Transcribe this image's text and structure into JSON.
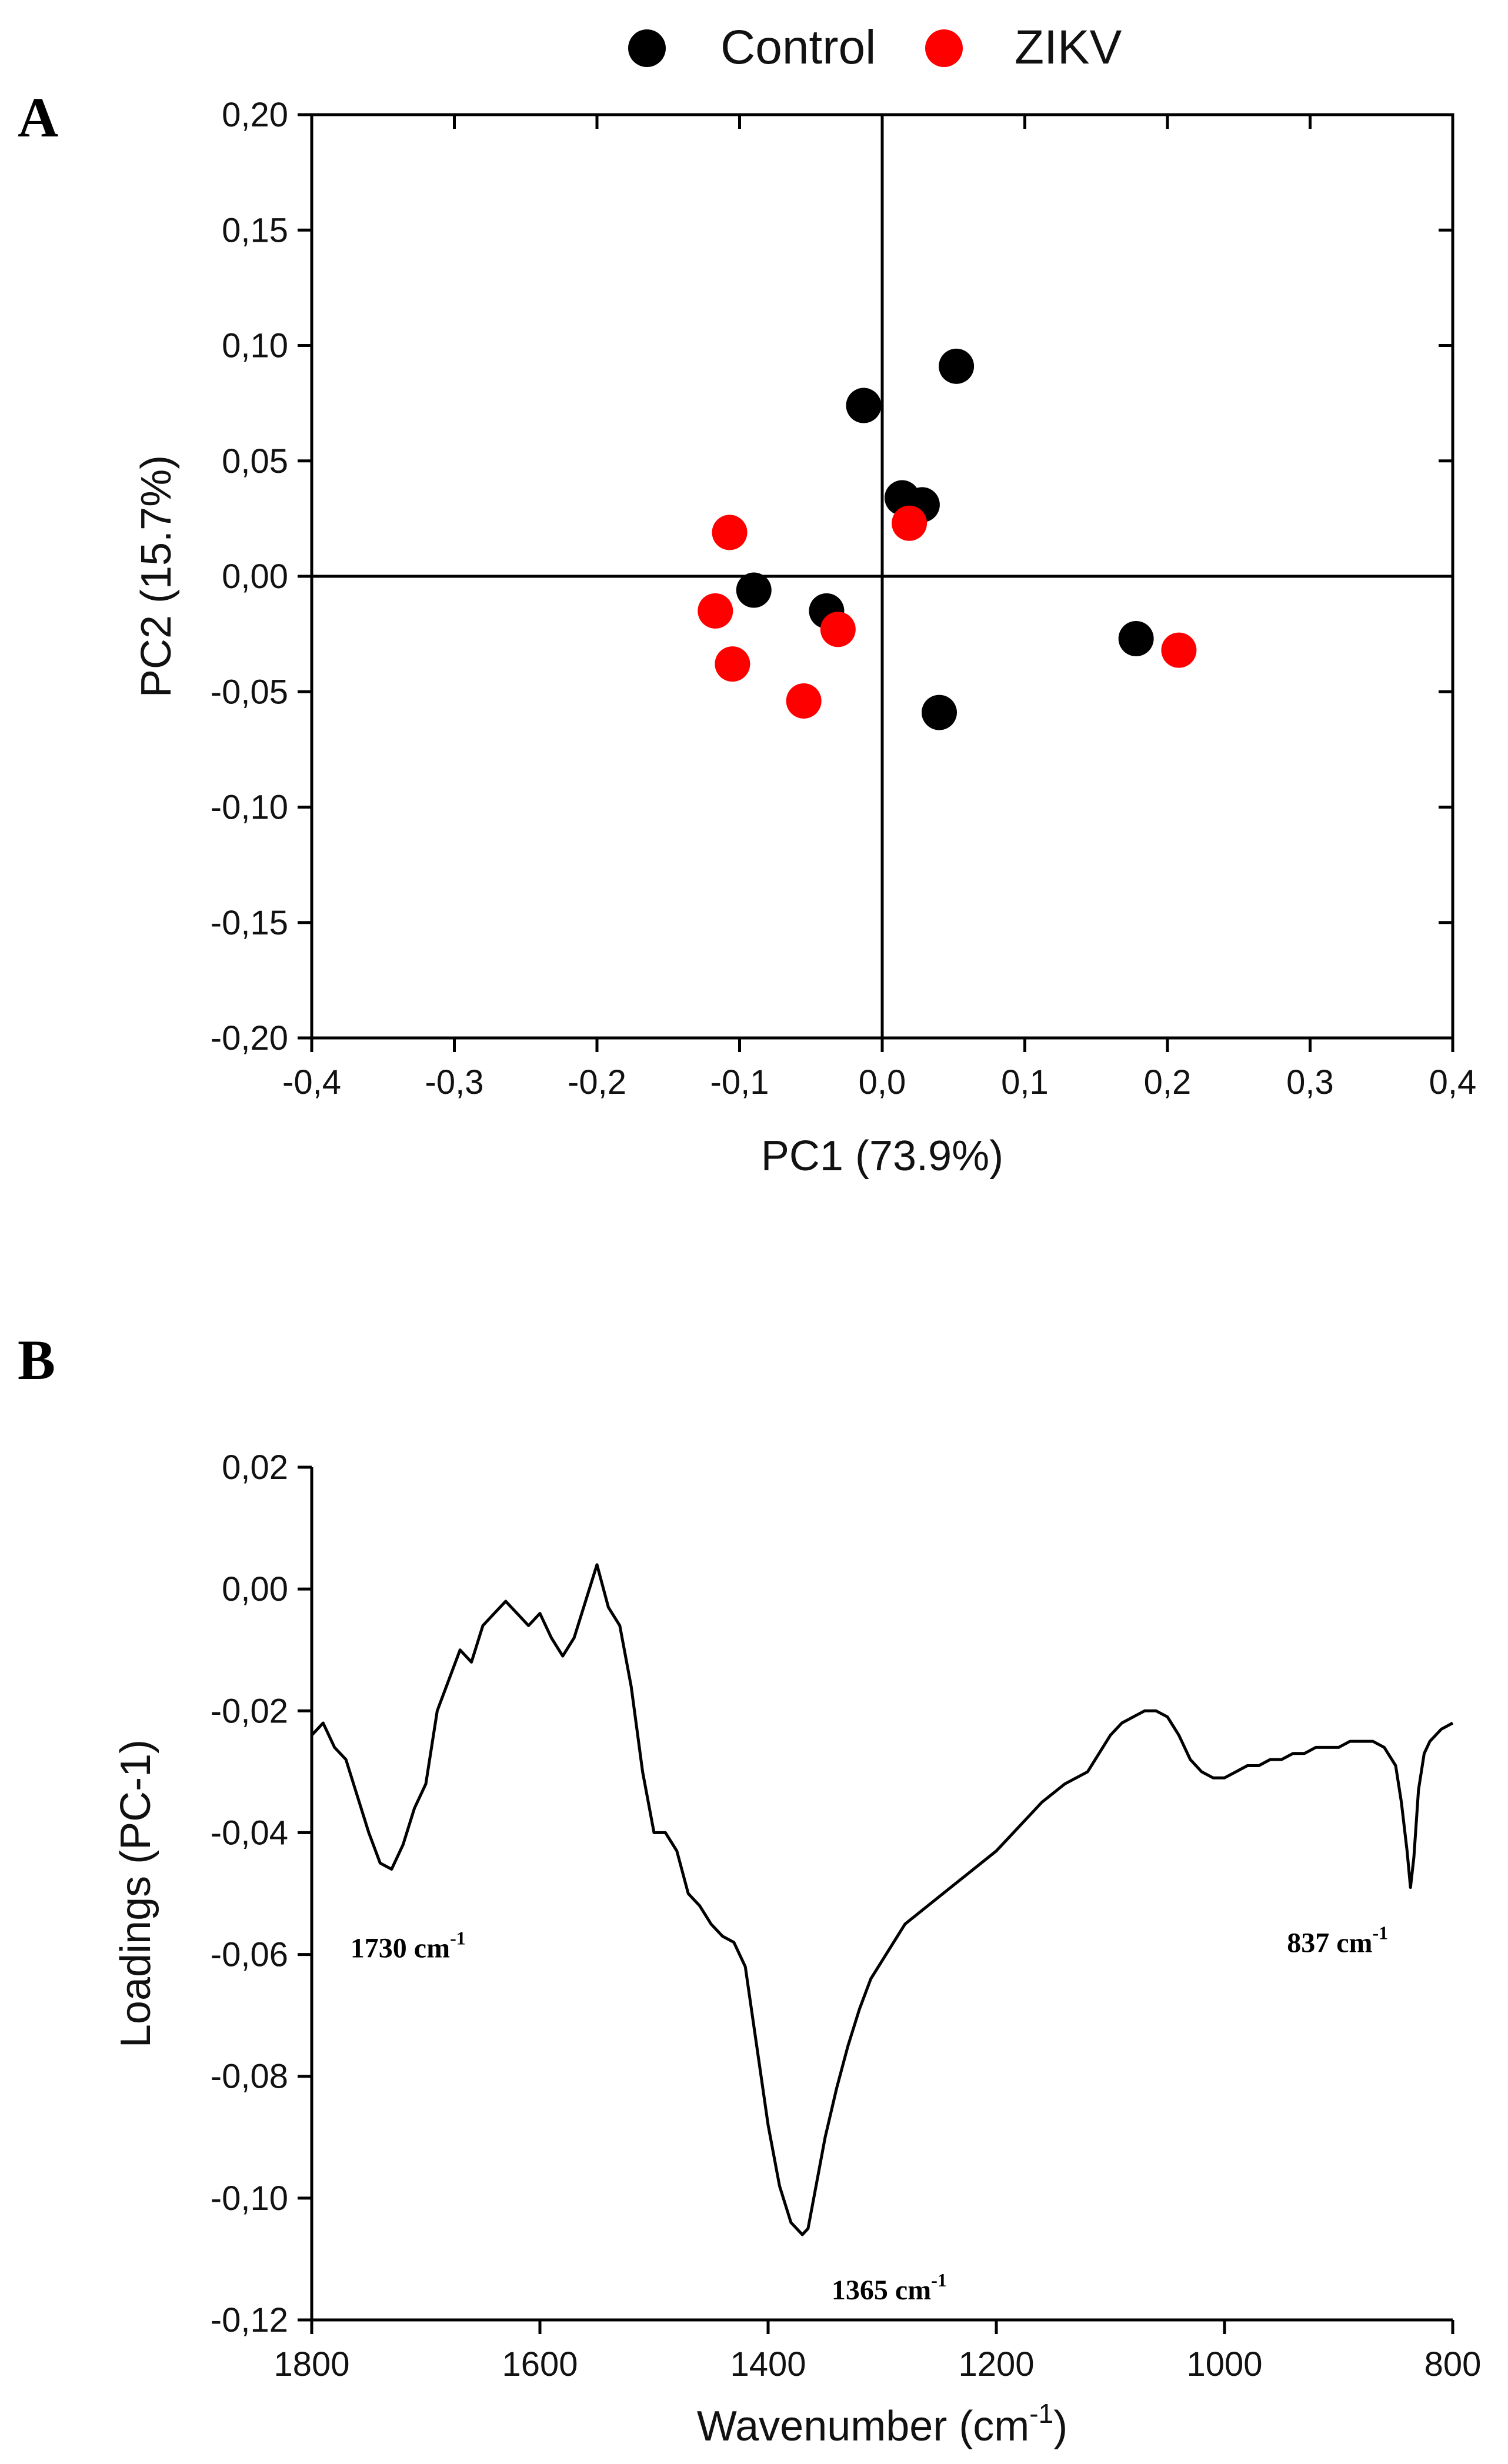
{
  "panel_labels": {
    "a": "A",
    "b": "B"
  },
  "legend": [
    {
      "label": "Control",
      "color": "#000000"
    },
    {
      "label": "ZIKV",
      "color": "#ff0000"
    }
  ],
  "chart_data": [
    {
      "type": "scatter",
      "panel": "A",
      "xlabel": "PC1 (73.9%)",
      "ylabel": "PC2 (15.7%)",
      "xlim": [
        -0.4,
        0.4
      ],
      "ylim": [
        -0.2,
        0.2
      ],
      "x_ticks": [
        "-0,4",
        "-0,3",
        "-0,2",
        "-0,1",
        "0,0",
        "0,1",
        "0,2",
        "0,3",
        "0,4"
      ],
      "y_ticks": [
        "0,20",
        "0,15",
        "0,10",
        "0,05",
        "0,00",
        "-0,05",
        "-0,10",
        "-0,15",
        "-0,20"
      ],
      "series": [
        {
          "name": "Control",
          "color": "#000000",
          "points": [
            {
              "x": 0.052,
              "y": 0.091
            },
            {
              "x": -0.013,
              "y": 0.074
            },
            {
              "x": 0.014,
              "y": 0.034
            },
            {
              "x": 0.028,
              "y": 0.031
            },
            {
              "x": -0.09,
              "y": -0.006
            },
            {
              "x": -0.039,
              "y": -0.015
            },
            {
              "x": 0.04,
              "y": -0.059
            },
            {
              "x": 0.178,
              "y": -0.027
            }
          ]
        },
        {
          "name": "ZIKV",
          "color": "#ff0000",
          "points": [
            {
              "x": -0.107,
              "y": 0.019
            },
            {
              "x": 0.019,
              "y": 0.023
            },
            {
              "x": -0.117,
              "y": -0.015
            },
            {
              "x": -0.105,
              "y": -0.038
            },
            {
              "x": -0.031,
              "y": -0.023
            },
            {
              "x": -0.055,
              "y": -0.054
            },
            {
              "x": 0.208,
              "y": -0.032
            }
          ]
        }
      ]
    },
    {
      "type": "line",
      "panel": "B",
      "xlabel": "Wavenumber (cm",
      "xlabel_sup": "-1",
      "xlabel_suffix": ")",
      "ylabel": "Loadings (PC-1)",
      "xlim": [
        1800,
        800
      ],
      "ylim": [
        -0.12,
        0.02
      ],
      "x_ticks": [
        "1800",
        "1600",
        "1400",
        "1200",
        "1000",
        "800"
      ],
      "y_ticks": [
        "0,02",
        "0,00",
        "-0,02",
        "-0,04",
        "-0,06",
        "-0,08",
        "-0,10",
        "-0,12"
      ],
      "series": [
        {
          "name": "Loadings (PC-1)",
          "color": "#000000",
          "x": [
            1800,
            1790,
            1780,
            1770,
            1760,
            1750,
            1740,
            1730,
            1720,
            1710,
            1700,
            1690,
            1680,
            1670,
            1660,
            1650,
            1640,
            1630,
            1620,
            1610,
            1600,
            1590,
            1580,
            1570,
            1560,
            1550,
            1540,
            1530,
            1520,
            1510,
            1500,
            1490,
            1480,
            1470,
            1460,
            1450,
            1440,
            1430,
            1420,
            1410,
            1400,
            1390,
            1380,
            1370,
            1365,
            1360,
            1350,
            1340,
            1330,
            1320,
            1310,
            1300,
            1280,
            1260,
            1240,
            1220,
            1200,
            1180,
            1160,
            1140,
            1120,
            1100,
            1090,
            1080,
            1070,
            1060,
            1050,
            1040,
            1030,
            1020,
            1010,
            1000,
            990,
            980,
            970,
            960,
            950,
            940,
            930,
            920,
            910,
            900,
            890,
            880,
            870,
            860,
            850,
            845,
            840,
            837,
            834,
            830,
            825,
            820,
            810,
            800
          ],
          "y": [
            -0.024,
            -0.022,
            -0.026,
            -0.028,
            -0.034,
            -0.04,
            -0.045,
            -0.046,
            -0.042,
            -0.036,
            -0.032,
            -0.02,
            -0.015,
            -0.01,
            -0.012,
            -0.006,
            -0.004,
            -0.002,
            -0.004,
            -0.006,
            -0.004,
            -0.008,
            -0.011,
            -0.008,
            -0.002,
            0.004,
            -0.003,
            -0.006,
            -0.016,
            -0.03,
            -0.04,
            -0.04,
            -0.043,
            -0.05,
            -0.052,
            -0.055,
            -0.057,
            -0.058,
            -0.062,
            -0.075,
            -0.088,
            -0.098,
            -0.104,
            -0.106,
            -0.105,
            -0.1,
            -0.09,
            -0.082,
            -0.075,
            -0.069,
            -0.064,
            -0.061,
            -0.055,
            -0.052,
            -0.049,
            -0.046,
            -0.043,
            -0.039,
            -0.035,
            -0.032,
            -0.03,
            -0.024,
            -0.022,
            -0.021,
            -0.02,
            -0.02,
            -0.021,
            -0.024,
            -0.028,
            -0.03,
            -0.031,
            -0.031,
            -0.03,
            -0.029,
            -0.029,
            -0.028,
            -0.028,
            -0.027,
            -0.027,
            -0.026,
            -0.026,
            -0.026,
            -0.025,
            -0.025,
            -0.025,
            -0.026,
            -0.029,
            -0.035,
            -0.043,
            -0.049,
            -0.044,
            -0.033,
            -0.027,
            -0.025,
            -0.023,
            -0.022
          ]
        }
      ],
      "annotations": [
        {
          "text": "1730 cm",
          "sup": "-1",
          "x": 1730,
          "y": -0.046
        },
        {
          "text": "1365 cm",
          "sup": "-1",
          "x": 1365,
          "y": -0.106
        },
        {
          "text": "837 cm",
          "sup": "-1",
          "x": 837,
          "y": -0.049
        }
      ]
    }
  ]
}
